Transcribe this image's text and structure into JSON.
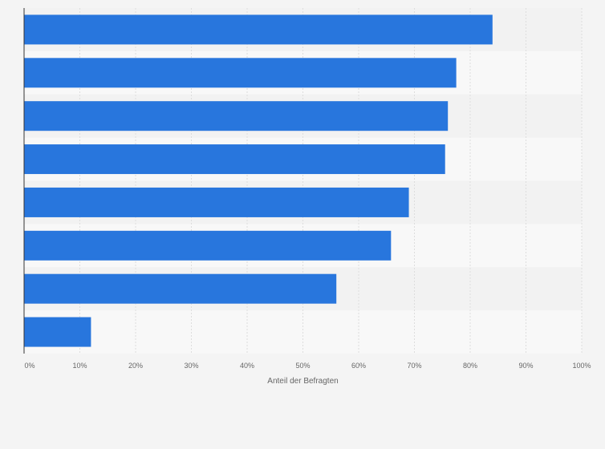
{
  "chart_data": {
    "type": "bar",
    "orientation": "horizontal",
    "title": "",
    "xlabel": "Anteil der Befragten",
    "ylabel": "",
    "xlim": [
      0,
      100
    ],
    "x_ticks": [
      0,
      10,
      20,
      30,
      40,
      50,
      60,
      70,
      80,
      90,
      100
    ],
    "x_tick_labels": [
      "0%",
      "10%",
      "20%",
      "30%",
      "40%",
      "50%",
      "60%",
      "70%",
      "80%",
      "90%",
      "100%"
    ],
    "categories": [
      "",
      "",
      "",
      "",
      "",
      "",
      "",
      ""
    ],
    "values": [
      84,
      77.5,
      76,
      75.5,
      69,
      65.8,
      56,
      12
    ],
    "grid": true,
    "colors": {
      "bar": "#2876dd",
      "band_dark": "#f2f2f2",
      "band_light": "#f8f8f8",
      "grid": "#dddddd",
      "axis": "#333333",
      "background": "#f4f4f4"
    }
  }
}
